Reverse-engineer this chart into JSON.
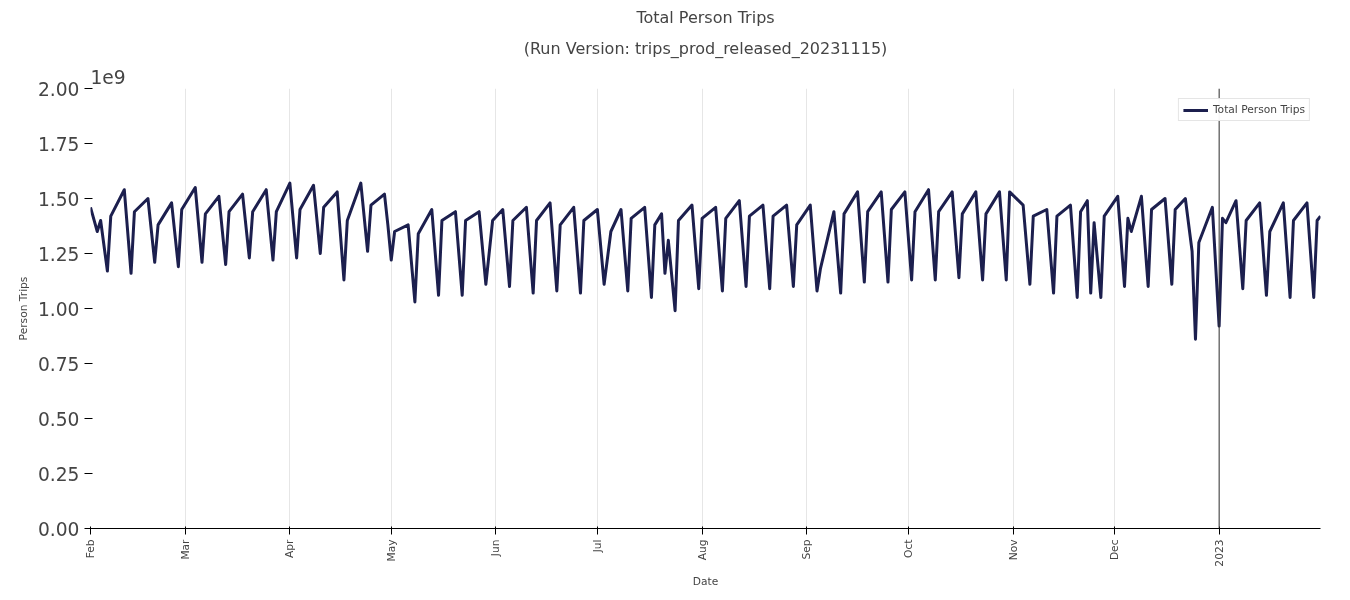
{
  "chart_data": {
    "type": "line",
    "title": "Total Person Trips",
    "subtitle": "(Run Version: trips_prod_released_20231115)",
    "xlabel": "Date",
    "ylabel": "Person Trips",
    "annotations": [
      "1e9"
    ],
    "xlim": [
      "2022-02-01",
      "2023-01-31"
    ],
    "xticks": [
      {
        "value": "2022-02-01",
        "label": "Feb"
      },
      {
        "value": "2022-03-01",
        "label": "Mar"
      },
      {
        "value": "2022-04-01",
        "label": "Apr"
      },
      {
        "value": "2022-05-01",
        "label": "May"
      },
      {
        "value": "2022-06-01",
        "label": "Jun"
      },
      {
        "value": "2022-07-01",
        "label": "Jul"
      },
      {
        "value": "2022-08-01",
        "label": "Aug"
      },
      {
        "value": "2022-09-01",
        "label": "Sep"
      },
      {
        "value": "2022-10-01",
        "label": "Oct"
      },
      {
        "value": "2022-11-01",
        "label": "Nov"
      },
      {
        "value": "2022-12-01",
        "label": "Dec"
      },
      {
        "value": "2023-01-01",
        "label": "2023"
      }
    ],
    "ylim": [
      0,
      2
    ],
    "yticks": [
      {
        "value": 0,
        "label": "0.00"
      },
      {
        "value": 0.25,
        "label": "0.25"
      },
      {
        "value": 0.5,
        "label": "0.50"
      },
      {
        "value": 0.75,
        "label": "0.75"
      },
      {
        "value": 1,
        "label": "1.00"
      },
      {
        "value": 1.25,
        "label": "1.25"
      },
      {
        "value": 1.5,
        "label": "1.50"
      },
      {
        "value": 1.75,
        "label": "1.75"
      },
      {
        "value": 2,
        "label": "2.00"
      }
    ],
    "grid": "x",
    "legend": "top right",
    "line_style": "solid",
    "marker": "none",
    "ref_lines": [
      {
        "axis": "x",
        "value": "2023-01-01",
        "label": null,
        "color": "#333333"
      }
    ],
    "x": [
      "2022-02-01",
      "2022-02-03",
      "2022-02-04",
      "2022-02-06",
      "2022-02-07",
      "2022-02-11",
      "2022-02-13",
      "2022-02-14",
      "2022-02-18",
      "2022-02-20",
      "2022-02-21",
      "2022-02-25",
      "2022-02-27",
      "2022-02-28",
      "2022-03-04",
      "2022-03-06",
      "2022-03-07",
      "2022-03-11",
      "2022-03-13",
      "2022-03-14",
      "2022-03-18",
      "2022-03-20",
      "2022-03-21",
      "2022-03-25",
      "2022-03-27",
      "2022-03-28",
      "2022-04-01",
      "2022-04-03",
      "2022-04-04",
      "2022-04-08",
      "2022-04-10",
      "2022-04-11",
      "2022-04-15",
      "2022-04-17",
      "2022-04-18",
      "2022-04-22",
      "2022-04-24",
      "2022-04-25",
      "2022-04-29",
      "2022-04-30",
      "2022-05-01",
      "2022-05-02",
      "2022-05-06",
      "2022-05-08",
      "2022-05-09",
      "2022-05-13",
      "2022-05-15",
      "2022-05-16",
      "2022-05-20",
      "2022-05-22",
      "2022-05-23",
      "2022-05-27",
      "2022-05-29",
      "2022-05-31",
      "2022-06-03",
      "2022-06-05",
      "2022-06-06",
      "2022-06-10",
      "2022-06-12",
      "2022-06-13",
      "2022-06-17",
      "2022-06-19",
      "2022-06-20",
      "2022-06-24",
      "2022-06-26",
      "2022-06-27",
      "2022-07-01",
      "2022-07-03",
      "2022-07-05",
      "2022-07-08",
      "2022-07-10",
      "2022-07-11",
      "2022-07-15",
      "2022-07-17",
      "2022-07-18",
      "2022-07-20",
      "2022-07-21",
      "2022-07-22",
      "2022-07-24",
      "2022-07-25",
      "2022-07-29",
      "2022-07-31",
      "2022-08-01",
      "2022-08-05",
      "2022-08-07",
      "2022-08-08",
      "2022-08-12",
      "2022-08-14",
      "2022-08-15",
      "2022-08-19",
      "2022-08-21",
      "2022-08-22",
      "2022-08-26",
      "2022-08-28",
      "2022-08-29",
      "2022-09-02",
      "2022-09-04",
      "2022-09-05",
      "2022-09-09",
      "2022-09-11",
      "2022-09-12",
      "2022-09-16",
      "2022-09-18",
      "2022-09-19",
      "2022-09-23",
      "2022-09-25",
      "2022-09-26",
      "2022-09-30",
      "2022-10-02",
      "2022-10-03",
      "2022-10-07",
      "2022-10-09",
      "2022-10-10",
      "2022-10-14",
      "2022-10-16",
      "2022-10-17",
      "2022-10-21",
      "2022-10-23",
      "2022-10-24",
      "2022-10-28",
      "2022-10-30",
      "2022-10-31",
      "2022-11-04",
      "2022-11-06",
      "2022-11-07",
      "2022-11-11",
      "2022-11-13",
      "2022-11-14",
      "2022-11-18",
      "2022-11-20",
      "2022-11-21",
      "2022-11-23",
      "2022-11-24",
      "2022-11-25",
      "2022-11-27",
      "2022-11-28",
      "2022-12-02",
      "2022-12-04",
      "2022-12-05",
      "2022-12-06",
      "2022-12-09",
      "2022-12-11",
      "2022-12-12",
      "2022-12-16",
      "2022-12-18",
      "2022-12-19",
      "2022-12-22",
      "2022-12-24",
      "2022-12-25",
      "2022-12-26",
      "2022-12-30",
      "2023-01-01",
      "2023-01-02",
      "2023-01-03",
      "2023-01-06",
      "2023-01-08",
      "2023-01-09",
      "2023-01-13",
      "2023-01-15",
      "2023-01-16",
      "2023-01-20",
      "2023-01-22",
      "2023-01-23",
      "2023-01-27",
      "2023-01-29",
      "2023-01-30",
      "2023-01-31"
    ],
    "series": [
      {
        "name": "Total Person Trips",
        "color": "#1c1f4e",
        "values": [
          1.46,
          1.35,
          1.4,
          1.17,
          1.42,
          1.54,
          1.16,
          1.44,
          1.5,
          1.21,
          1.38,
          1.48,
          1.19,
          1.45,
          1.55,
          1.21,
          1.43,
          1.51,
          1.2,
          1.44,
          1.52,
          1.23,
          1.44,
          1.54,
          1.22,
          1.44,
          1.57,
          1.23,
          1.45,
          1.56,
          1.25,
          1.46,
          1.53,
          1.13,
          1.4,
          1.57,
          1.26,
          1.47,
          1.52,
          1.38,
          1.22,
          1.35,
          1.38,
          1.03,
          1.34,
          1.45,
          1.06,
          1.4,
          1.44,
          1.06,
          1.4,
          1.44,
          1.11,
          1.4,
          1.45,
          1.1,
          1.4,
          1.46,
          1.07,
          1.4,
          1.48,
          1.08,
          1.38,
          1.46,
          1.07,
          1.4,
          1.45,
          1.11,
          1.35,
          1.45,
          1.08,
          1.41,
          1.46,
          1.05,
          1.38,
          1.43,
          1.16,
          1.31,
          0.99,
          1.4,
          1.47,
          1.09,
          1.41,
          1.46,
          1.08,
          1.41,
          1.49,
          1.1,
          1.42,
          1.47,
          1.09,
          1.42,
          1.47,
          1.1,
          1.38,
          1.47,
          1.08,
          1.18,
          1.44,
          1.07,
          1.43,
          1.53,
          1.12,
          1.44,
          1.53,
          1.12,
          1.45,
          1.53,
          1.13,
          1.44,
          1.54,
          1.13,
          1.44,
          1.53,
          1.14,
          1.43,
          1.53,
          1.13,
          1.43,
          1.53,
          1.13,
          1.53,
          1.47,
          1.11,
          1.42,
          1.45,
          1.07,
          1.42,
          1.47,
          1.05,
          1.44,
          1.49,
          1.07,
          1.39,
          1.05,
          1.42,
          1.51,
          1.1,
          1.41,
          1.35,
          1.51,
          1.1,
          1.45,
          1.5,
          1.11,
          1.45,
          1.5,
          1.26,
          0.86,
          1.3,
          1.46,
          0.92,
          1.41,
          1.39,
          1.49,
          1.09,
          1.4,
          1.48,
          1.06,
          1.35,
          1.48,
          1.05,
          1.4,
          1.48,
          1.05,
          1.4,
          1.42
        ]
      }
    ]
  }
}
